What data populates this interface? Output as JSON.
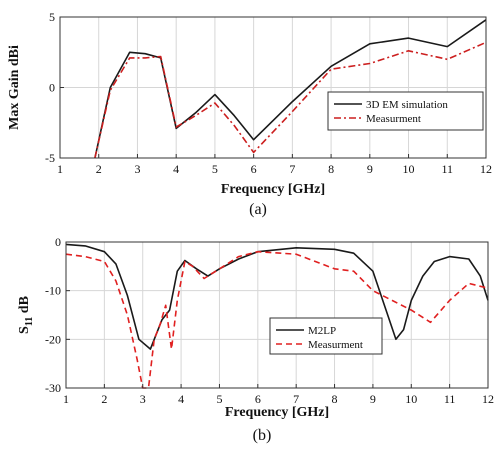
{
  "chart_data": [
    {
      "type": "line",
      "panel_label": "(a)",
      "xlabel": "Frequency [GHz]",
      "ylabel": "Max Gain dBi",
      "xlim": [
        1,
        12
      ],
      "ylim": [
        -5,
        5
      ],
      "xticks": [
        1,
        2,
        3,
        4,
        5,
        6,
        7,
        8,
        9,
        10,
        11,
        12
      ],
      "yticks": [
        -5,
        0,
        5
      ],
      "grid": true,
      "legend_position": "center-right",
      "series": [
        {
          "name": "3D EM simulation",
          "color": "#1a1a1a",
          "style": "solid",
          "x": [
            1.9,
            2.3,
            2.8,
            3.2,
            3.6,
            4.0,
            4.5,
            5.0,
            5.5,
            6.0,
            7.0,
            8.0,
            9.0,
            10.0,
            11.0,
            12.0
          ],
          "y": [
            -5.0,
            0.0,
            2.5,
            2.4,
            2.1,
            -2.9,
            -1.8,
            -0.5,
            -2.0,
            -3.7,
            -1.0,
            1.5,
            3.1,
            3.5,
            2.9,
            4.8
          ]
        },
        {
          "name": "Measurment",
          "color": "#cc1f1f",
          "style": "dashdot",
          "x": [
            1.9,
            2.3,
            2.8,
            3.2,
            3.6,
            4.0,
            4.5,
            5.0,
            5.5,
            6.0,
            7.0,
            8.0,
            9.0,
            10.0,
            11.0,
            12.0
          ],
          "y": [
            -5.0,
            -0.2,
            2.1,
            2.1,
            2.2,
            -2.8,
            -2.0,
            -1.1,
            -2.7,
            -4.6,
            -1.7,
            1.3,
            1.7,
            2.6,
            2.0,
            3.2
          ]
        }
      ]
    },
    {
      "type": "line",
      "panel_label": "(b)",
      "xlabel": "Frequency [GHz]",
      "ylabel_main": "S",
      "ylabel_sub": "11",
      "ylabel_unit": " dB",
      "xlim": [
        1,
        12
      ],
      "ylim": [
        -30,
        0
      ],
      "xticks": [
        1,
        2,
        3,
        4,
        5,
        6,
        7,
        8,
        9,
        10,
        11,
        12
      ],
      "yticks": [
        -30,
        -20,
        -10,
        0
      ],
      "grid": true,
      "legend_position": "center-right",
      "series": [
        {
          "name": "M2LP",
          "color": "#1a1a1a",
          "style": "solid",
          "x": [
            1.0,
            1.5,
            2.0,
            2.3,
            2.6,
            2.9,
            3.2,
            3.5,
            3.7,
            3.9,
            4.1,
            4.4,
            4.7,
            5.0,
            5.5,
            6.0,
            7.0,
            8.0,
            8.5,
            9.0,
            9.3,
            9.6,
            9.8,
            10.0,
            10.3,
            10.6,
            11.0,
            11.5,
            11.8,
            12.0
          ],
          "y": [
            -0.5,
            -0.8,
            -2.0,
            -4.5,
            -11.0,
            -20.0,
            -22.0,
            -16.0,
            -14.0,
            -6.0,
            -3.8,
            -5.5,
            -7.0,
            -5.5,
            -3.5,
            -2.0,
            -1.2,
            -1.5,
            -2.3,
            -6.0,
            -13.0,
            -20.0,
            -18.0,
            -12.0,
            -7.0,
            -4.0,
            -3.0,
            -3.5,
            -7.0,
            -12.0
          ]
        },
        {
          "name": "Measurment",
          "color": "#e02020",
          "style": "dashed",
          "x": [
            1.0,
            1.5,
            2.0,
            2.3,
            2.6,
            2.85,
            3.0,
            3.15,
            3.3,
            3.45,
            3.6,
            3.75,
            3.9,
            4.1,
            4.3,
            4.6,
            5.0,
            5.5,
            6.0,
            7.0,
            8.0,
            8.5,
            9.0,
            9.5,
            10.0,
            10.5,
            11.0,
            11.5,
            12.0
          ],
          "y": [
            -2.5,
            -3.0,
            -4.0,
            -8.0,
            -15.0,
            -24.0,
            -30.0,
            -30.0,
            -20.0,
            -17.0,
            -13.0,
            -22.0,
            -12.0,
            -4.0,
            -5.0,
            -7.5,
            -5.5,
            -3.0,
            -2.0,
            -2.5,
            -5.5,
            -6.0,
            -10.0,
            -12.0,
            -14.0,
            -16.5,
            -12.0,
            -8.5,
            -9.5
          ]
        }
      ]
    }
  ]
}
